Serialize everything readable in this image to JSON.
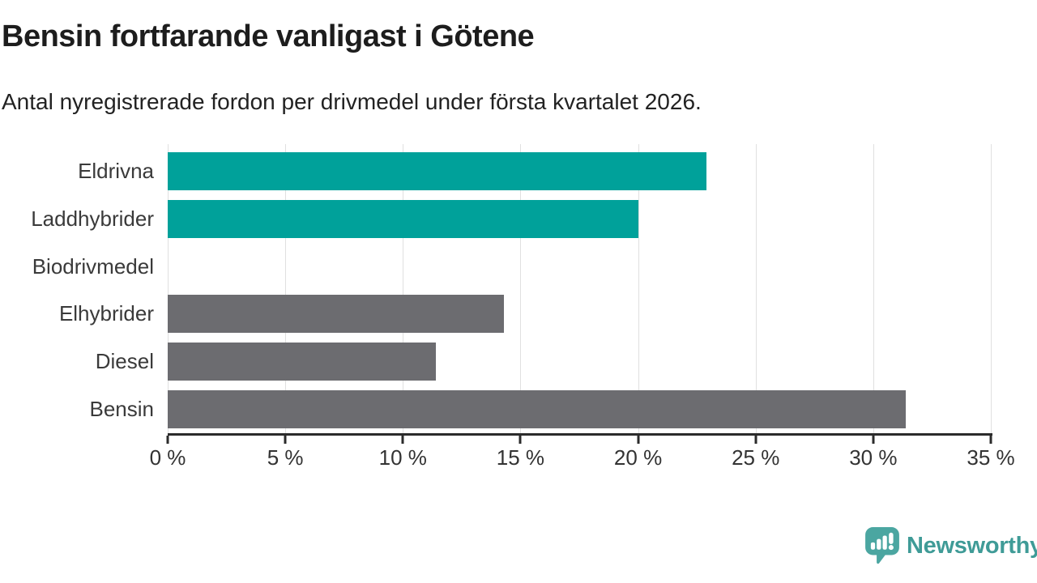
{
  "header": {
    "title": "Bensin fortfarande vanligast i Götene",
    "subtitle": "Antal nyregistrerade fordon per drivmedel under första kvartalet 2026."
  },
  "chart_data": {
    "type": "bar",
    "orientation": "horizontal",
    "categories": [
      "Eldrivna",
      "Laddhybrider",
      "Biodrivmedel",
      "Elhybrider",
      "Diesel",
      "Bensin"
    ],
    "values": [
      22.9,
      20.0,
      0.0,
      14.3,
      11.4,
      31.4
    ],
    "unit": "%",
    "bar_colors": [
      "#00a19a",
      "#00a19a",
      "#00a19a",
      "#6c6c70",
      "#6c6c70",
      "#6c6c70"
    ],
    "title": "Bensin fortfarande vanligast i Götene",
    "xlabel": "",
    "ylabel": "",
    "xlim": [
      0,
      35
    ],
    "x_ticks": [
      0,
      5,
      10,
      15,
      20,
      25,
      30,
      35
    ],
    "x_tick_labels": [
      "0 %",
      "5 %",
      "10 %",
      "15 %",
      "20 %",
      "25 %",
      "30 %",
      "35 %"
    ],
    "grid": true,
    "legend": "none"
  },
  "colors": {
    "accent_teal": "#00a19a",
    "neutral_gray": "#6c6c70",
    "gridline": "#e0e0e0",
    "axis": "#2b2b2b",
    "title_text": "#1d1d1d",
    "label_text": "#3a3a3a",
    "logo_teal": "#4ba6a1"
  },
  "footer": {
    "brand": "Newsworthy"
  }
}
